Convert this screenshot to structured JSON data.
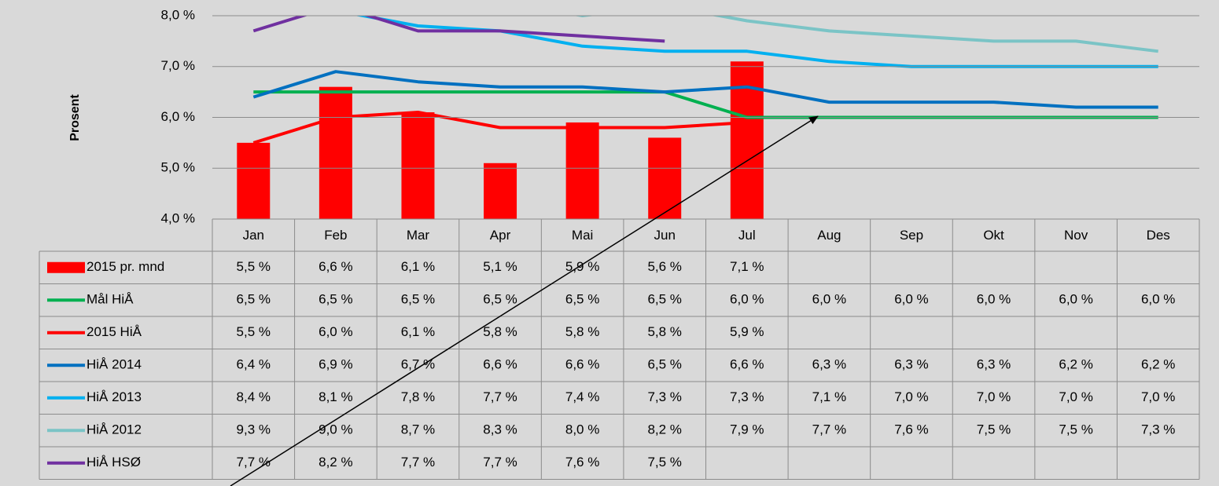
{
  "chart_data": {
    "type": "bar",
    "y_label": "Prosent",
    "categories": [
      "Jan",
      "Feb",
      "Mar",
      "Apr",
      "Mai",
      "Jun",
      "Jul",
      "Aug",
      "Sep",
      "Okt",
      "Nov",
      "Des"
    ],
    "ylim": [
      4,
      8
    ],
    "yticks": [
      {
        "value": 4,
        "label": "4,0 %"
      },
      {
        "value": 5,
        "label": "5,0 %"
      },
      {
        "value": 6,
        "label": "6,0 %"
      },
      {
        "value": 7,
        "label": "7,0 %"
      },
      {
        "value": 8,
        "label": "8,0 %"
      }
    ],
    "grid": true,
    "series": [
      {
        "name": "2015 pr. mnd",
        "type": "bar",
        "color": "#ff0000",
        "values": [
          5.5,
          6.6,
          6.1,
          5.1,
          5.9,
          5.6,
          7.1,
          null,
          null,
          null,
          null,
          null
        ],
        "value_labels": [
          "5,5 %",
          "6,6 %",
          "6,1 %",
          "5,1 %",
          "5,9 %",
          "5,6 %",
          "7,1 %",
          null,
          null,
          null,
          null,
          null
        ]
      },
      {
        "name": "Mål HiÅ",
        "type": "line",
        "color": "#00b050",
        "values": [
          6.5,
          6.5,
          6.5,
          6.5,
          6.5,
          6.5,
          6.0,
          6.0,
          6.0,
          6.0,
          6.0,
          6.0
        ],
        "value_labels": [
          "6,5 %",
          "6,5 %",
          "6,5 %",
          "6,5 %",
          "6,5 %",
          "6,5 %",
          "6,0 %",
          "6,0 %",
          "6,0 %",
          "6,0 %",
          "6,0 %",
          "6,0 %"
        ]
      },
      {
        "name": "2015 HiÅ",
        "type": "line",
        "color": "#ff0000",
        "values": [
          5.5,
          6.0,
          6.1,
          5.8,
          5.8,
          5.8,
          5.9,
          null,
          null,
          null,
          null,
          null
        ],
        "value_labels": [
          "5,5 %",
          "6,0 %",
          "6,1 %",
          "5,8 %",
          "5,8 %",
          "5,8 %",
          "5,9 %",
          null,
          null,
          null,
          null,
          null
        ]
      },
      {
        "name": "HiÅ 2014",
        "type": "line",
        "color": "#0070c0",
        "values": [
          6.4,
          6.9,
          6.7,
          6.6,
          6.6,
          6.5,
          6.6,
          6.3,
          6.3,
          6.3,
          6.2,
          6.2
        ],
        "value_labels": [
          "6,4 %",
          "6,9 %",
          "6,7 %",
          "6,6 %",
          "6,6 %",
          "6,5 %",
          "6,6 %",
          "6,3 %",
          "6,3 %",
          "6,3 %",
          "6,2 %",
          "6,2 %"
        ]
      },
      {
        "name": "HiÅ 2013",
        "type": "line",
        "color": "#00b0f0",
        "values": [
          8.4,
          8.1,
          7.8,
          7.7,
          7.4,
          7.3,
          7.3,
          7.1,
          7.0,
          7.0,
          7.0,
          7.0
        ],
        "value_labels": [
          "8,4 %",
          "8,1 %",
          "7,8 %",
          "7,7 %",
          "7,4 %",
          "7,3 %",
          "7,3 %",
          "7,1 %",
          "7,0 %",
          "7,0 %",
          "7,0 %",
          "7,0 %"
        ]
      },
      {
        "name": "HiÅ 2012",
        "type": "line",
        "color": "#7bc4c6",
        "values": [
          9.3,
          9.0,
          8.7,
          8.3,
          8.0,
          8.2,
          7.9,
          7.7,
          7.6,
          7.5,
          7.5,
          7.3
        ],
        "value_labels": [
          "9,3 %",
          "9,0 %",
          "8,7 %",
          "8,3 %",
          "8,0 %",
          "8,2 %",
          "7,9 %",
          "7,7 %",
          "7,6 %",
          "7,5 %",
          "7,5 %",
          "7,3 %"
        ]
      },
      {
        "name": "HiÅ HSØ",
        "type": "line",
        "color": "#7030a0",
        "values": [
          7.7,
          8.2,
          7.7,
          7.7,
          7.6,
          7.5,
          null,
          null,
          null,
          null,
          null,
          null
        ],
        "value_labels": [
          "7,7 %",
          "8,2 %",
          "7,7 %",
          "7,7 %",
          "7,6 %",
          "7,5 %",
          null,
          null,
          null,
          null,
          null,
          null
        ]
      }
    ]
  }
}
